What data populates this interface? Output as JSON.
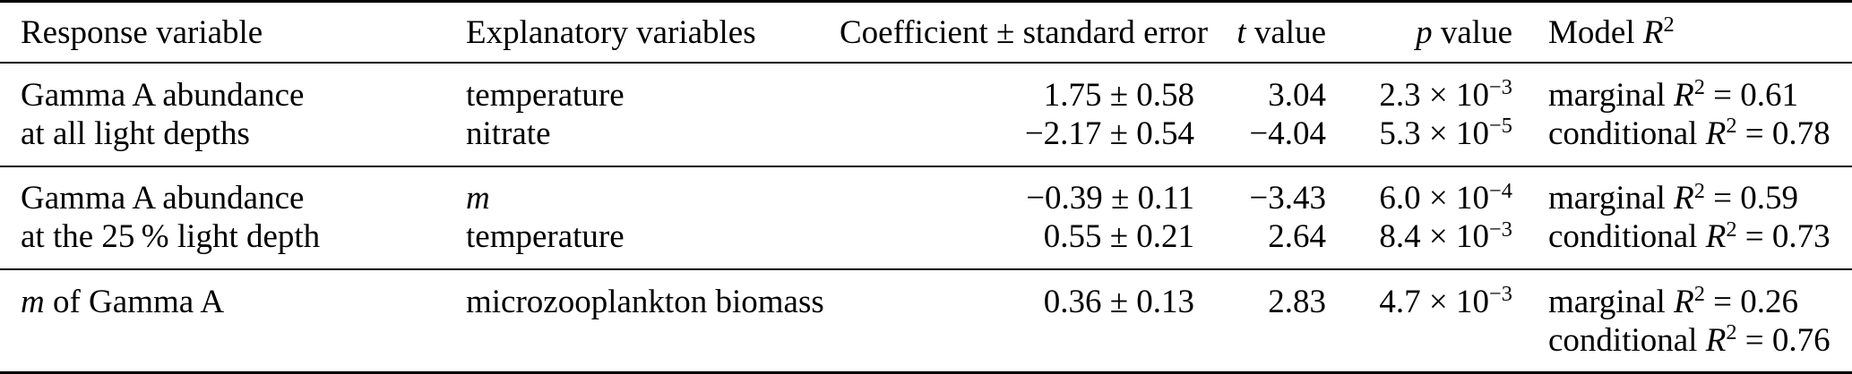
{
  "page": {
    "background_color": "#ffffff",
    "text_color": "#000000",
    "rule_color": "#000000"
  },
  "table": {
    "columns": [
      {
        "id": "response-variable",
        "label": [
          {
            "t": "Response variable"
          }
        ]
      },
      {
        "id": "explanatory-variables",
        "label": [
          {
            "t": "Explanatory variables"
          }
        ]
      },
      {
        "id": "coefficient",
        "label": [
          {
            "t": "Coefficient ± standard error"
          }
        ]
      },
      {
        "id": "t-value",
        "label": [
          {
            "t": "t",
            "i": true
          },
          {
            "t": " value"
          }
        ]
      },
      {
        "id": "p-value",
        "label": [
          {
            "t": "p",
            "i": true
          },
          {
            "t": " value"
          }
        ]
      },
      {
        "id": "model-r2",
        "label": [
          {
            "t": "Model "
          },
          {
            "t": "R",
            "i": true
          },
          {
            "t": "2",
            "sup": true
          }
        ]
      }
    ],
    "sections": [
      {
        "rows": [
          {
            "cells": [
              [
                {
                  "t": "Gamma A abundance"
                }
              ],
              [
                {
                  "t": "temperature"
                }
              ],
              [
                {
                  "t": "1.75 ± 0.58"
                }
              ],
              [
                {
                  "t": "3.04"
                }
              ],
              [
                {
                  "t": "2.3 × 10"
                },
                {
                  "t": "−3",
                  "sup": true
                }
              ],
              [
                {
                  "t": "marginal "
                },
                {
                  "t": "R",
                  "i": true
                },
                {
                  "t": "2",
                  "sup": true
                },
                {
                  "t": " = 0.61"
                }
              ]
            ]
          },
          {
            "cells": [
              [
                {
                  "t": "at all light depths"
                }
              ],
              [
                {
                  "t": "nitrate"
                }
              ],
              [
                {
                  "t": "−2.17 ± 0.54"
                }
              ],
              [
                {
                  "t": "−4.04"
                }
              ],
              [
                {
                  "t": "5.3 × 10"
                },
                {
                  "t": "−5",
                  "sup": true
                }
              ],
              [
                {
                  "t": "conditional "
                },
                {
                  "t": "R",
                  "i": true
                },
                {
                  "t": "2",
                  "sup": true
                },
                {
                  "t": " = 0.78"
                }
              ]
            ]
          }
        ]
      },
      {
        "rows": [
          {
            "cells": [
              [
                {
                  "t": "Gamma A abundance"
                }
              ],
              [
                {
                  "t": "m",
                  "i": true
                }
              ],
              [
                {
                  "t": "−0.39 ± 0.11"
                }
              ],
              [
                {
                  "t": "−3.43"
                }
              ],
              [
                {
                  "t": "6.0 × 10"
                },
                {
                  "t": "−4",
                  "sup": true
                }
              ],
              [
                {
                  "t": "marginal "
                },
                {
                  "t": "R",
                  "i": true
                },
                {
                  "t": "2",
                  "sup": true
                },
                {
                  "t": " = 0.59"
                }
              ]
            ]
          },
          {
            "cells": [
              [
                {
                  "t": "at the 25 % light depth"
                }
              ],
              [
                {
                  "t": "temperature"
                }
              ],
              [
                {
                  "t": "0.55 ± 0.21"
                }
              ],
              [
                {
                  "t": "2.64"
                }
              ],
              [
                {
                  "t": "8.4 × 10"
                },
                {
                  "t": "−3",
                  "sup": true
                }
              ],
              [
                {
                  "t": "conditional "
                },
                {
                  "t": "R",
                  "i": true
                },
                {
                  "t": "2",
                  "sup": true
                },
                {
                  "t": " = 0.73"
                }
              ]
            ]
          }
        ]
      },
      {
        "rows": [
          {
            "cells": [
              [
                {
                  "t": "m",
                  "i": true
                },
                {
                  "t": " of Gamma A"
                }
              ],
              [
                {
                  "t": "microzooplankton biomass"
                }
              ],
              [
                {
                  "t": "0.36 ± 0.13"
                }
              ],
              [
                {
                  "t": "2.83"
                }
              ],
              [
                {
                  "t": "4.7 × 10"
                },
                {
                  "t": "−3",
                  "sup": true
                }
              ],
              [
                {
                  "t": "marginal "
                },
                {
                  "t": "R",
                  "i": true
                },
                {
                  "t": "2",
                  "sup": true
                },
                {
                  "t": " = 0.26"
                }
              ]
            ]
          },
          {
            "cells": [
              [],
              [],
              [],
              [],
              [],
              [
                {
                  "t": "conditional "
                },
                {
                  "t": "R",
                  "i": true
                },
                {
                  "t": "2",
                  "sup": true
                },
                {
                  "t": " = 0.76"
                }
              ]
            ]
          }
        ]
      }
    ]
  }
}
